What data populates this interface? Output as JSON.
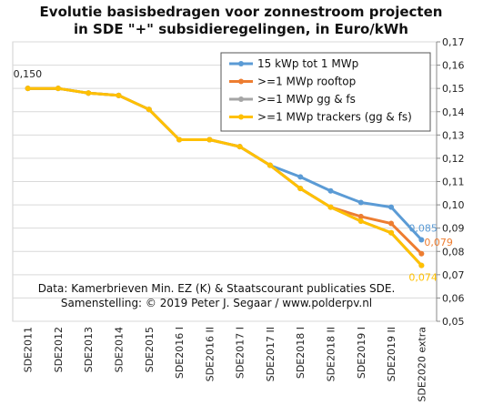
{
  "chart_data": {
    "type": "line",
    "title_line1": "Evolutie basisbedragen voor zonnestroom projecten",
    "title_line2": "in SDE \"+\" subsidieregelingen, in Euro/kWh",
    "xlabel": "",
    "ylabel": "",
    "categories": [
      "SDE2011",
      "SDE2012",
      "SDE2013",
      "SDE2014",
      "SDE2015",
      "SDE2016 I",
      "SDE2016 II",
      "SDE2017 I",
      "SDE2017 II",
      "SDE2018 I",
      "SDE2018 II",
      "SDE2019 I",
      "SDE2019 II",
      "SDE2020 extra"
    ],
    "ylim": [
      0.05,
      0.17
    ],
    "ytick_labels": [
      "0,05",
      "0,06",
      "0,07",
      "0,08",
      "0,09",
      "0,10",
      "0,11",
      "0,12",
      "0,13",
      "0,14",
      "0,15",
      "0,16",
      "0,17"
    ],
    "grid": true,
    "legend_position": "top-right",
    "series": [
      {
        "name": "15 kWp tot 1 MWp",
        "color": "#5b9bd5",
        "values": [
          0.15,
          0.15,
          0.148,
          0.147,
          0.141,
          0.128,
          0.128,
          0.125,
          0.117,
          0.112,
          0.106,
          0.101,
          0.099,
          0.085
        ]
      },
      {
        "name": ">=1 MWp rooftop",
        "color": "#ed7d31",
        "values": [
          0.15,
          0.15,
          0.148,
          0.147,
          0.141,
          0.128,
          0.128,
          0.125,
          0.117,
          0.107,
          0.099,
          0.095,
          0.092,
          0.079
        ]
      },
      {
        "name": ">=1 MWp gg & fs",
        "color": "#a5a5a5",
        "values": [
          0.15,
          0.15,
          0.148,
          0.147,
          0.141,
          0.128,
          0.128,
          0.125,
          0.117,
          0.107,
          0.099,
          0.093,
          0.088,
          0.074
        ]
      },
      {
        "name": ">=1 MWp trackers (gg & fs)",
        "color": "#ffc000",
        "values": [
          0.15,
          0.15,
          0.148,
          0.147,
          0.141,
          0.128,
          0.128,
          0.125,
          0.117,
          0.107,
          0.099,
          0.093,
          0.088,
          0.074
        ]
      }
    ],
    "data_labels": [
      {
        "text": "0,150",
        "series": 3,
        "index": 0,
        "color": "#222222"
      },
      {
        "text": "0,085",
        "series": 0,
        "index": 13,
        "color": "#5b9bd5"
      },
      {
        "text": "0,079",
        "series": 1,
        "index": 13,
        "color": "#ed7d31"
      },
      {
        "text": "0,074",
        "series": 3,
        "index": 13,
        "color": "#ffc000"
      }
    ],
    "annotations": [
      "Data: Kamerbrieven Min. EZ (K) & Staatscourant publicaties SDE.",
      "Samenstelling: © 2019 Peter J. Segaar / www.polderpv.nl"
    ]
  }
}
